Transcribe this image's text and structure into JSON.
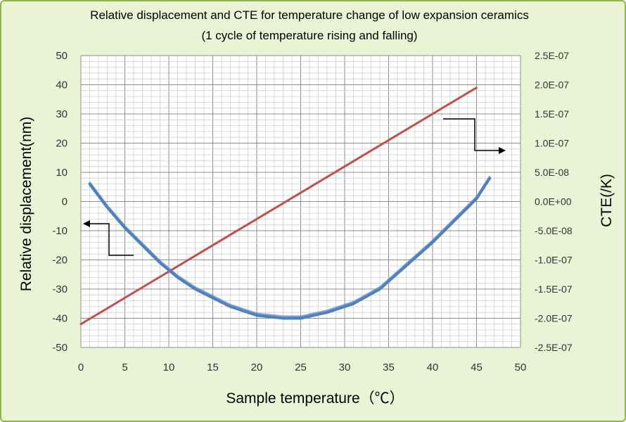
{
  "chart_data": {
    "type": "line",
    "title": "Relative displacement and CTE for temperature change of low expansion ceramics",
    "subtitle": "(1 cycle of temperature rising and falling)",
    "xlabel": "Sample temperature（℃）",
    "ylabel_left": "Relative displacement(nm)",
    "ylabel_right": "CTE(/K)",
    "xlim": [
      0,
      50
    ],
    "ylim_left": [
      -50,
      50
    ],
    "ylim_right": [
      -2.5e-07,
      2.5e-07
    ],
    "x_ticks": [
      "0",
      "5",
      "10",
      "15",
      "20",
      "25",
      "30",
      "35",
      "40",
      "45",
      "50"
    ],
    "y_left_ticks": [
      "50",
      "40",
      "30",
      "20",
      "10",
      "0",
      "-10",
      "-20",
      "-30",
      "-40",
      "-50"
    ],
    "y_right_ticks": [
      "2.5E-07",
      "2.0E-07",
      "1.5E-07",
      "1.0E-07",
      "5.0E-08",
      "0.0E+00",
      "-5.0E-08",
      "-1.0E-07",
      "-1.5E-07",
      "-2.0E-07",
      "-2.5E-07"
    ],
    "grid": true,
    "series": [
      {
        "axis": "right",
        "color": "#c0504d",
        "x": [
          0,
          5,
          10,
          15,
          20,
          25,
          30,
          35,
          40,
          45
        ],
        "y": [
          -2.1e-07,
          -1.65e-07,
          -1.2e-07,
          -7.5e-08,
          -3e-08,
          1.5e-08,
          6e-08,
          1.05e-07,
          1.5e-07,
          1.95e-07
        ]
      },
      {
        "axis": "left",
        "color": "#4f81bd",
        "x": [
          1,
          3,
          5,
          7,
          9,
          11,
          13,
          15,
          17,
          20,
          23,
          25,
          28,
          31,
          34,
          37,
          40,
          43,
          45,
          46.5
        ],
        "y": [
          6,
          -2,
          -9,
          -15,
          -21,
          -26,
          -30,
          -33,
          -36,
          -39,
          -40,
          -40,
          -38,
          -35,
          -30,
          -22,
          -14,
          -5,
          1,
          8
        ]
      }
    ]
  }
}
